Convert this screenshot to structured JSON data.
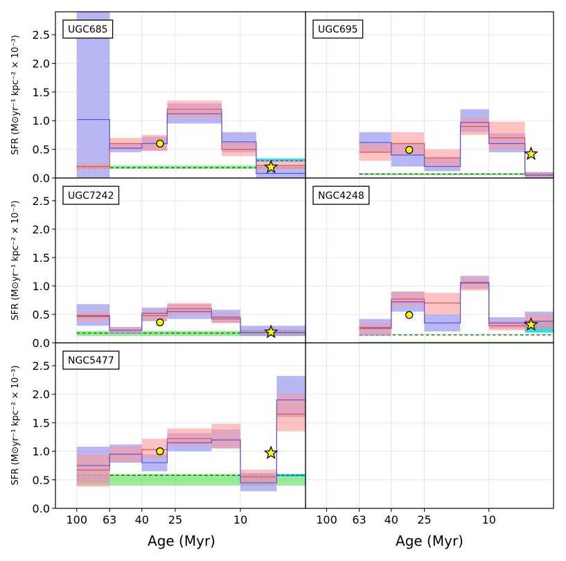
{
  "figure": {
    "xlabel": "Age (Myr)",
    "ylabel": "SFR (M⊙yr⁻¹ kpc⁻² × 10⁻³)"
  },
  "chart_data": {
    "type": "step",
    "x_scale": "log",
    "x_reversed": true,
    "xlim": [
      135,
      4
    ],
    "ylim": [
      0,
      2.9
    ],
    "x_tick_values": [
      100,
      63,
      40,
      25,
      10
    ],
    "x_tick_labels": [
      "100",
      "63",
      "40",
      "25",
      "10"
    ],
    "y_tick_values": [
      0,
      0.5,
      1.0,
      1.5,
      2.0,
      2.5
    ],
    "y_tick_labels": [
      "0.0",
      "0.5",
      "1.0",
      "1.5",
      "2.0",
      "2.5"
    ],
    "grid": true,
    "colors": {
      "blue": "#5555e0",
      "blue_band": "#9999f0",
      "red": "#e05050",
      "red_band": "#ff9999",
      "purple_band": "#9a5aa8",
      "green": "#44dd44",
      "green_line": "#0a7a0a",
      "cyan": "#00d6d6",
      "marker": "#ffff00"
    },
    "panels": [
      {
        "name": "UGC685",
        "bins": [
          [
            100,
            63
          ],
          [
            63,
            40
          ],
          [
            40,
            28
          ],
          [
            28,
            13
          ],
          [
            13,
            8
          ],
          [
            8,
            4
          ]
        ],
        "blue": [
          1.02,
          0.52,
          0.6,
          1.12,
          0.63,
          0.08
        ],
        "blue_lo": [
          0.0,
          0.45,
          0.48,
          0.95,
          0.45,
          0.0
        ],
        "blue_hi": [
          2.9,
          0.6,
          0.72,
          1.3,
          0.8,
          0.2
        ],
        "red": [
          0.2,
          0.6,
          0.6,
          1.2,
          0.5,
          0.22
        ],
        "red_lo": [
          0.15,
          0.5,
          0.47,
          1.05,
          0.38,
          0.15
        ],
        "red_hi": [
          0.25,
          0.7,
          0.75,
          1.35,
          0.62,
          0.3
        ],
        "green_line": 0.18,
        "green_band": [
          0.16,
          0.22
        ],
        "cyan": 0.3,
        "cyan_band": [
          0.28,
          0.34
        ],
        "circle": [
          31,
          0.6
        ],
        "star": [
          6.5,
          0.19
        ]
      },
      {
        "name": "UGC695",
        "bins": [
          [
            63,
            40
          ],
          [
            40,
            25
          ],
          [
            25,
            15
          ],
          [
            15,
            10
          ],
          [
            10,
            6
          ],
          [
            6,
            4
          ]
        ],
        "blue": [
          0.62,
          0.4,
          0.2,
          0.97,
          0.6,
          0.05
        ],
        "blue_lo": [
          0.45,
          0.2,
          0.12,
          0.8,
          0.45,
          0.0
        ],
        "blue_hi": [
          0.8,
          0.6,
          0.35,
          1.2,
          0.78,
          0.1
        ],
        "red": [
          0.45,
          0.6,
          0.35,
          0.9,
          0.7,
          0.05
        ],
        "red_lo": [
          0.3,
          0.4,
          0.2,
          0.75,
          0.5,
          0.0
        ],
        "red_hi": [
          0.6,
          0.8,
          0.5,
          1.05,
          0.98,
          0.1
        ],
        "green_line": 0.07,
        "green_band": [
          0.05,
          0.08
        ],
        "cyan": 0.09,
        "cyan_band": [
          0.07,
          0.1
        ],
        "circle": [
          31,
          0.49
        ],
        "star": [
          5.5,
          0.42
        ]
      },
      {
        "name": "UGC7242",
        "bins": [
          [
            100,
            63
          ],
          [
            63,
            40
          ],
          [
            40,
            28
          ],
          [
            28,
            15
          ],
          [
            15,
            10
          ],
          [
            10,
            4
          ]
        ],
        "blue": [
          0.48,
          0.22,
          0.52,
          0.55,
          0.45,
          0.18
        ],
        "blue_lo": [
          0.3,
          0.16,
          0.38,
          0.42,
          0.35,
          0.12
        ],
        "blue_hi": [
          0.68,
          0.28,
          0.62,
          0.68,
          0.58,
          0.3
        ],
        "red": [
          0.46,
          0.22,
          0.48,
          0.6,
          0.42,
          0.18
        ],
        "red_lo": [
          0.38,
          0.18,
          0.4,
          0.5,
          0.35,
          0.15
        ],
        "red_hi": [
          0.55,
          0.27,
          0.57,
          0.7,
          0.5,
          0.22
        ],
        "green_line": 0.17,
        "green_band": [
          0.12,
          0.21
        ],
        "cyan": 0.19,
        "cyan_band": [
          0.15,
          0.23
        ],
        "circle": [
          31,
          0.36
        ],
        "star": [
          6.5,
          0.19
        ]
      },
      {
        "name": "NGC4248",
        "bins": [
          [
            63,
            40
          ],
          [
            40,
            25
          ],
          [
            25,
            15
          ],
          [
            15,
            10
          ],
          [
            10,
            6
          ],
          [
            6,
            4
          ]
        ],
        "blue": [
          0.27,
          0.72,
          0.35,
          1.06,
          0.35,
          0.38
        ],
        "blue_lo": [
          0.12,
          0.55,
          0.2,
          0.95,
          0.25,
          0.25
        ],
        "blue_hi": [
          0.42,
          0.9,
          0.5,
          1.18,
          0.45,
          0.55
        ],
        "red": [
          0.25,
          0.77,
          0.7,
          1.05,
          0.3,
          0.38
        ],
        "red_lo": [
          0.15,
          0.65,
          0.5,
          0.92,
          0.22,
          0.25
        ],
        "red_hi": [
          0.35,
          0.9,
          0.88,
          1.15,
          0.38,
          0.5
        ],
        "green_line": 0.14,
        "green_band": [
          0.0,
          0.02
        ],
        "cyan": 0.28,
        "cyan_band": [
          0.18,
          0.36
        ],
        "circle": [
          31,
          0.49
        ],
        "star": [
          5.5,
          0.32
        ]
      },
      {
        "name": "NGC5477",
        "bins": [
          [
            100,
            63
          ],
          [
            63,
            40
          ],
          [
            40,
            28
          ],
          [
            28,
            15
          ],
          [
            15,
            10
          ],
          [
            10,
            6
          ],
          [
            6,
            4
          ]
        ],
        "blue": [
          0.75,
          0.95,
          0.8,
          1.15,
          1.2,
          0.45,
          1.9
        ],
        "blue_lo": [
          0.45,
          0.8,
          0.65,
          1.0,
          1.05,
          0.3,
          1.6
        ],
        "blue_hi": [
          1.08,
          1.12,
          0.95,
          1.32,
          1.38,
          0.62,
          2.32
        ],
        "red": [
          0.67,
          0.95,
          1.03,
          1.22,
          1.2,
          0.55,
          1.65
        ],
        "red_lo": [
          0.38,
          0.82,
          0.88,
          1.1,
          1.05,
          0.42,
          1.35
        ],
        "red_hi": [
          0.95,
          1.08,
          1.22,
          1.4,
          1.48,
          0.68,
          2.0
        ],
        "green_line": 0.58,
        "green_band": [
          0.4,
          0.6
        ],
        "cyan": 0.58,
        "cyan_band": [
          0.56,
          0.6
        ],
        "circle": [
          31,
          1.0
        ],
        "star": [
          6.5,
          0.97
        ]
      }
    ]
  }
}
